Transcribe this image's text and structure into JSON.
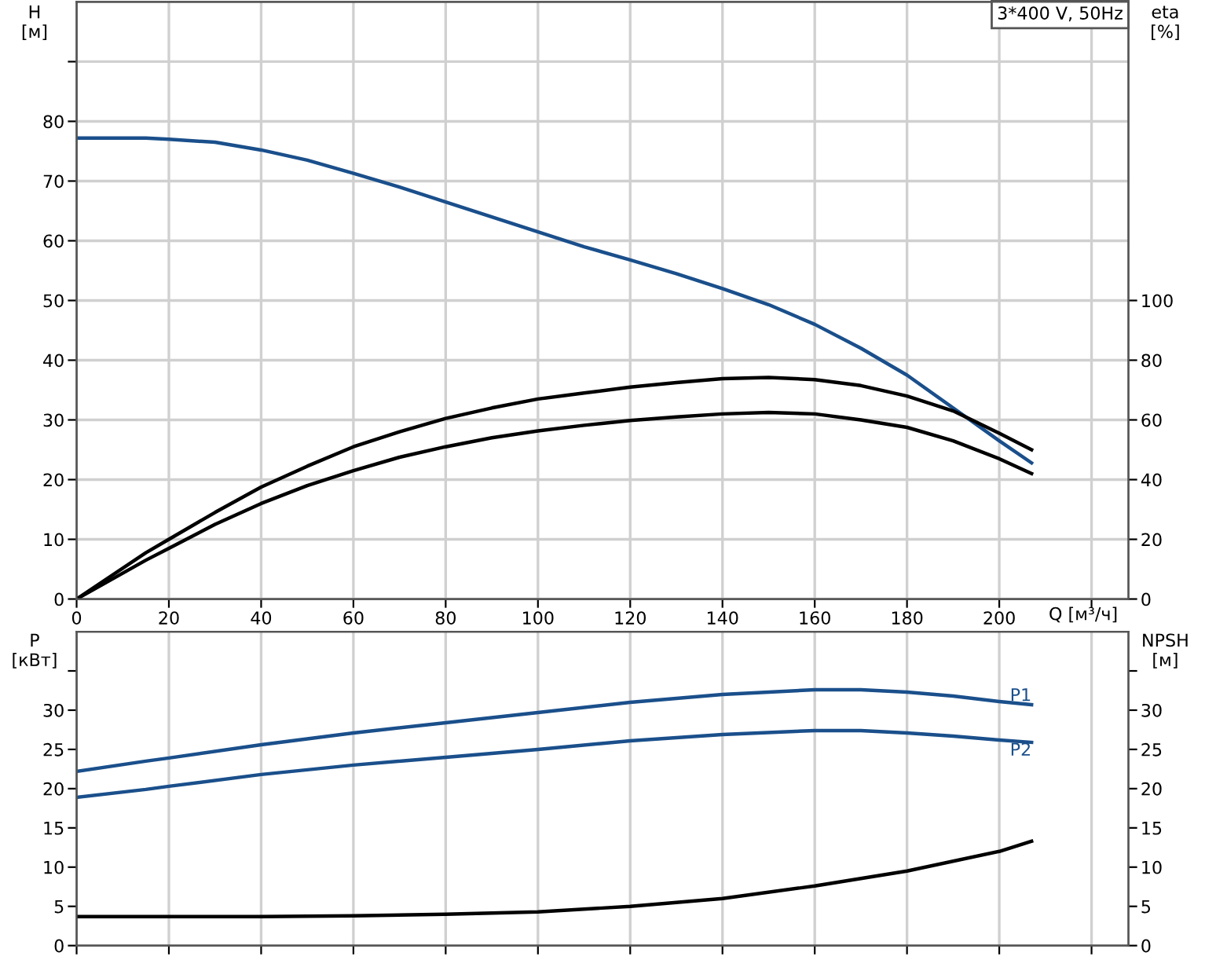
{
  "chart_data": [
    {
      "type": "line",
      "title": "3*400 V, 50Hz",
      "xlabel": "Q [м³/ч]",
      "ylabel": "H\n[м]",
      "y2label": "eta\n[%]",
      "xlim": [
        0,
        228
      ],
      "xticks": [
        0,
        20,
        40,
        60,
        80,
        100,
        120,
        140,
        160,
        180,
        200,
        {
          "value": 220,
          "label": null
        }
      ],
      "ylim": [
        0,
        100
      ],
      "yticks": [
        0,
        10,
        20,
        30,
        40,
        50,
        60,
        70,
        80,
        {
          "value": 90,
          "label": null
        }
      ],
      "y2lim": [
        0,
        200
      ],
      "y2ticks": [
        0,
        20,
        40,
        60,
        80,
        100
      ],
      "grid": true,
      "legend": false,
      "series": [
        {
          "color": "#1a4f8b",
          "x": [
            0,
            15,
            20,
            30,
            40,
            50,
            60,
            70,
            80,
            90,
            100,
            110,
            120,
            130,
            140,
            150,
            160,
            170,
            180,
            190,
            200,
            207
          ],
          "values": [
            77.2,
            77.2,
            77,
            76.5,
            75.2,
            73.5,
            71.3,
            69,
            66.5,
            64,
            61.5,
            59,
            56.8,
            54.5,
            52,
            49.3,
            46,
            42,
            37.5,
            32,
            26.5,
            22.8
          ]
        },
        {
          "color": "#000000",
          "axis": "y2",
          "x": [
            0,
            15,
            20,
            30,
            40,
            50,
            60,
            70,
            80,
            90,
            100,
            110,
            120,
            130,
            140,
            150,
            160,
            170,
            180,
            190,
            200,
            207
          ],
          "values": [
            0,
            15.5,
            20,
            29,
            37.5,
            44.5,
            51,
            56,
            60.5,
            64,
            67,
            69,
            71,
            72.5,
            73.8,
            74.2,
            73.5,
            71.5,
            68,
            63,
            55.5,
            50
          ]
        },
        {
          "color": "#000000",
          "axis": "y2",
          "x": [
            0,
            15,
            20,
            30,
            40,
            50,
            60,
            70,
            80,
            90,
            100,
            110,
            120,
            130,
            140,
            150,
            160,
            170,
            180,
            190,
            200,
            207
          ],
          "values": [
            0,
            13,
            17,
            25,
            32,
            38,
            43,
            47.5,
            51,
            54,
            56.3,
            58.2,
            59.8,
            61,
            62,
            62.5,
            62,
            60,
            57.5,
            53,
            47,
            42
          ]
        }
      ]
    },
    {
      "type": "line",
      "ylabel": "P\n[кВт]",
      "y2label": "NPSH\n[м]",
      "xlim": [
        0,
        228
      ],
      "xticks": [
        0,
        20,
        40,
        60,
        80,
        100,
        120,
        140,
        160,
        180,
        200,
        {
          "value": 220,
          "label": null
        }
      ],
      "ylim": [
        0,
        40
      ],
      "yticks": [
        0,
        5,
        10,
        15,
        20,
        25,
        30,
        {
          "value": 35,
          "label": null
        }
      ],
      "y2lim": [
        0,
        40
      ],
      "y2ticks": [
        0,
        5,
        10,
        15,
        20,
        25,
        30,
        {
          "value": 35,
          "label": null
        }
      ],
      "grid": "x",
      "legend": false,
      "tick_labels": "y",
      "series": [
        {
          "name": "P1",
          "color": "#1a4f8b",
          "x": [
            0,
            15,
            20,
            40,
            60,
            80,
            100,
            120,
            140,
            160,
            170,
            180,
            190,
            200,
            207
          ],
          "values": [
            22.2,
            23.5,
            23.9,
            25.6,
            27.1,
            28.4,
            29.7,
            31,
            32,
            32.6,
            32.6,
            32.3,
            31.8,
            31.1,
            30.7
          ]
        },
        {
          "name": "P2",
          "color": "#1a4f8b",
          "x": [
            0,
            15,
            20,
            40,
            60,
            80,
            100,
            120,
            140,
            160,
            170,
            180,
            190,
            200,
            207
          ],
          "values": [
            18.9,
            19.9,
            20.3,
            21.8,
            23,
            24,
            25,
            26.1,
            26.9,
            27.4,
            27.4,
            27.1,
            26.7,
            26.2,
            25.9
          ]
        },
        {
          "color": "#000000",
          "axis": "y2",
          "x": [
            0,
            15,
            40,
            60,
            80,
            100,
            120,
            140,
            160,
            180,
            200,
            207
          ],
          "values": [
            3.7,
            3.7,
            3.7,
            3.8,
            4,
            4.3,
            5,
            6,
            7.6,
            9.5,
            12,
            13.3
          ]
        }
      ]
    }
  ]
}
